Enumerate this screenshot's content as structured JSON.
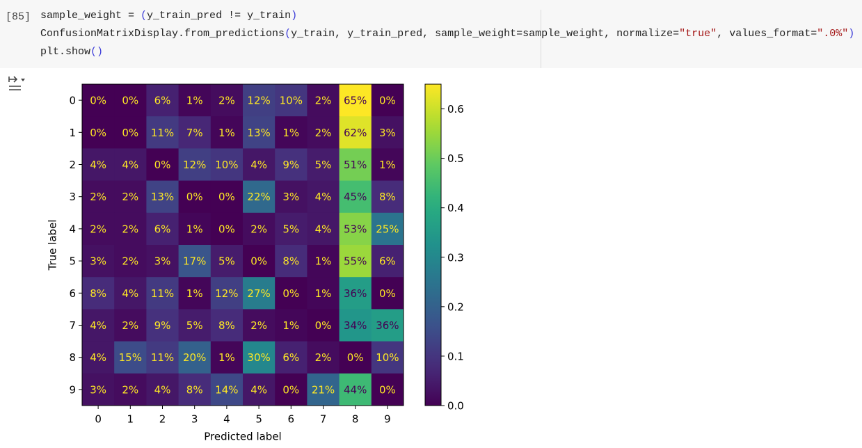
{
  "cell": {
    "prompt": "[85]",
    "lines": [
      [
        {
          "text": "sample_weight = ",
          "color": "#1f1f1f"
        },
        {
          "text": "(",
          "color": "#3a3ad8"
        },
        {
          "text": "y_train_pred != y_train",
          "color": "#1f1f1f"
        },
        {
          "text": ")",
          "color": "#3a3ad8"
        }
      ],
      [
        {
          "text": "ConfusionMatrixDisplay.from_predictions",
          "color": "#1f1f1f"
        },
        {
          "text": "(",
          "color": "#3a3ad8"
        },
        {
          "text": "y_train, y_train_pred, sample_weight=sample_weight, normalize=",
          "color": "#1f1f1f"
        },
        {
          "text": "\"true\"",
          "color": "#a31515"
        },
        {
          "text": ", values_format=",
          "color": "#1f1f1f"
        },
        {
          "text": "\".0%\"",
          "color": "#a31515"
        },
        {
          "text": ")",
          "color": "#3a3ad8"
        }
      ],
      [
        {
          "text": "plt.show",
          "color": "#1f1f1f"
        },
        {
          "text": "()",
          "color": "#3a3ad8"
        }
      ]
    ]
  },
  "chart_data": {
    "type": "heatmap",
    "colormap": "viridis",
    "x_label": "Predicted label",
    "y_label": "True label",
    "x_categories": [
      "0",
      "1",
      "2",
      "3",
      "4",
      "5",
      "6",
      "7",
      "8",
      "9"
    ],
    "y_categories": [
      "0",
      "1",
      "2",
      "3",
      "4",
      "5",
      "6",
      "7",
      "8",
      "9"
    ],
    "values": [
      [
        0,
        0,
        0.06,
        0.01,
        0.02,
        0.12,
        0.1,
        0.02,
        0.65,
        0
      ],
      [
        0,
        0,
        0.11,
        0.07,
        0.01,
        0.13,
        0.01,
        0.02,
        0.62,
        0.03
      ],
      [
        0.04,
        0.04,
        0,
        0.12,
        0.1,
        0.04,
        0.09,
        0.05,
        0.51,
        0.01
      ],
      [
        0.02,
        0.02,
        0.13,
        0,
        0,
        0.22,
        0.03,
        0.04,
        0.45,
        0.08
      ],
      [
        0.02,
        0.02,
        0.06,
        0.01,
        0,
        0.02,
        0.05,
        0.04,
        0.53,
        0.25
      ],
      [
        0.03,
        0.02,
        0.03,
        0.17,
        0.05,
        0,
        0.08,
        0.01,
        0.55,
        0.06
      ],
      [
        0.08,
        0.04,
        0.11,
        0.01,
        0.12,
        0.27,
        0,
        0.01,
        0.36,
        0
      ],
      [
        0.04,
        0.02,
        0.09,
        0.05,
        0.08,
        0.02,
        0.01,
        0,
        0.34,
        0.36
      ],
      [
        0.04,
        0.15,
        0.11,
        0.2,
        0.01,
        0.3,
        0.06,
        0.02,
        0,
        0.1
      ],
      [
        0.03,
        0.02,
        0.04,
        0.08,
        0.14,
        0.04,
        0,
        0.21,
        0.44,
        0
      ]
    ],
    "value_labels": [
      [
        "0%",
        "0%",
        "6%",
        "1%",
        "2%",
        "12%",
        "10%",
        "2%",
        "65%",
        "0%"
      ],
      [
        "0%",
        "0%",
        "11%",
        "7%",
        "1%",
        "13%",
        "1%",
        "2%",
        "62%",
        "3%"
      ],
      [
        "4%",
        "4%",
        "0%",
        "12%",
        "10%",
        "4%",
        "9%",
        "5%",
        "51%",
        "1%"
      ],
      [
        "2%",
        "2%",
        "13%",
        "0%",
        "0%",
        "22%",
        "3%",
        "4%",
        "45%",
        "8%"
      ],
      [
        "2%",
        "2%",
        "6%",
        "1%",
        "0%",
        "2%",
        "5%",
        "4%",
        "53%",
        "25%"
      ],
      [
        "3%",
        "2%",
        "3%",
        "17%",
        "5%",
        "0%",
        "8%",
        "1%",
        "55%",
        "6%"
      ],
      [
        "8%",
        "4%",
        "11%",
        "1%",
        "12%",
        "27%",
        "0%",
        "1%",
        "36%",
        "0%"
      ],
      [
        "4%",
        "2%",
        "9%",
        "5%",
        "8%",
        "2%",
        "1%",
        "0%",
        "34%",
        "36%"
      ],
      [
        "4%",
        "15%",
        "11%",
        "20%",
        "1%",
        "30%",
        "6%",
        "2%",
        "0%",
        "10%"
      ],
      [
        "3%",
        "2%",
        "4%",
        "8%",
        "14%",
        "4%",
        "0%",
        "21%",
        "44%",
        "0%"
      ]
    ],
    "clim": [
      0,
      0.65
    ],
    "cticks": [
      {
        "value": 0,
        "label": "0.0"
      },
      0.1,
      0.2,
      0.3,
      0.4,
      0.5,
      0.6
    ]
  }
}
